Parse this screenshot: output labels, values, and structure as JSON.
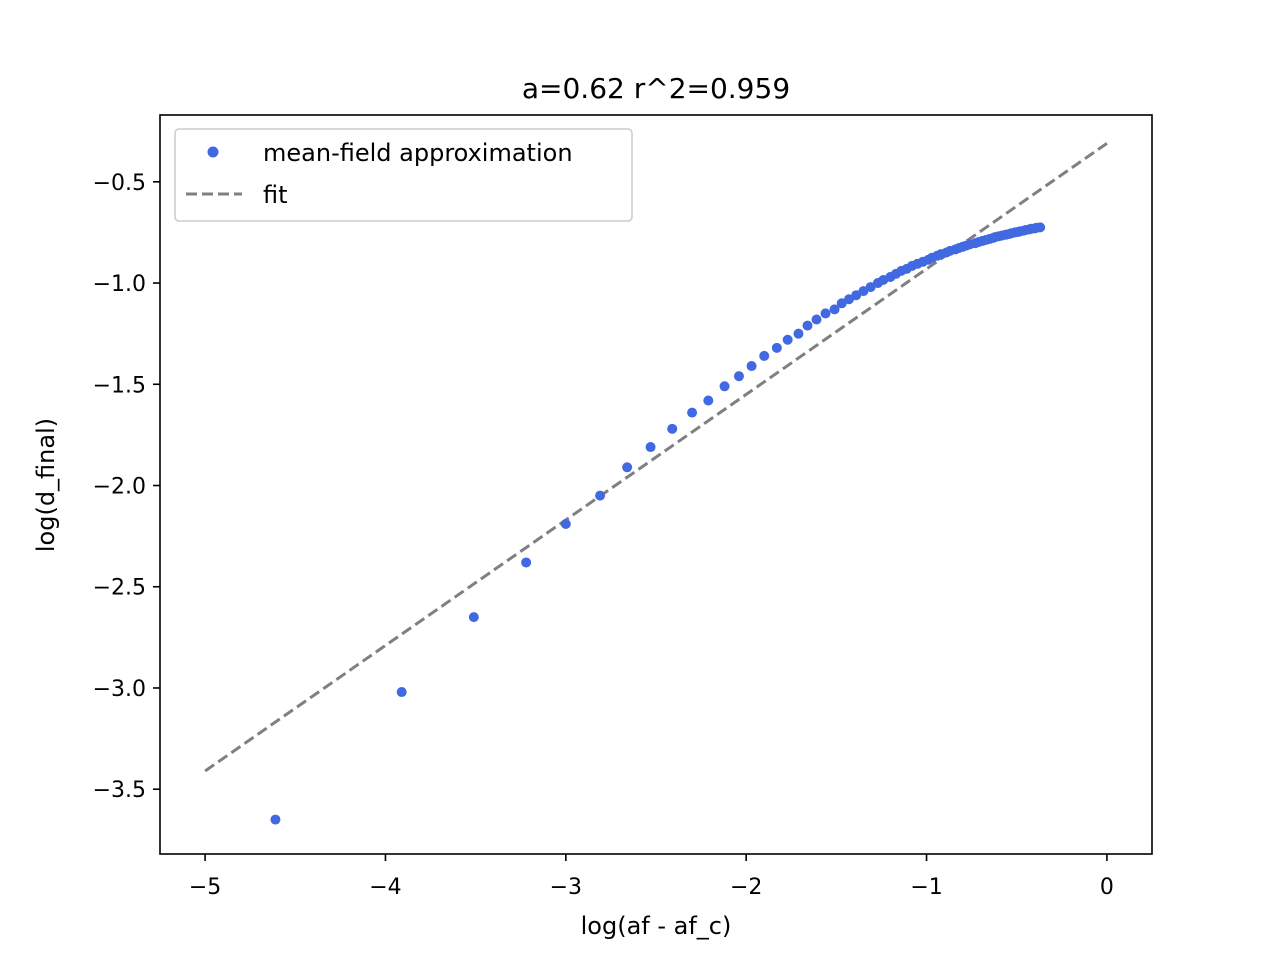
{
  "chart_data": {
    "type": "scatter",
    "title": "a=0.62 r^2=0.959",
    "xlabel": "log(af - af_c)",
    "ylabel": "log(d_final)",
    "xlim": [
      -5.25,
      0.25
    ],
    "ylim": [
      -3.82,
      -0.17
    ],
    "xticks": [
      -5,
      -4,
      -3,
      -2,
      -1,
      0
    ],
    "xtick_labels": [
      "−5",
      "−4",
      "−3",
      "−2",
      "−1",
      "0"
    ],
    "yticks": [
      -3.5,
      -3.0,
      -2.5,
      -2.0,
      -1.5,
      -1.0,
      -0.5
    ],
    "ytick_labels": [
      "−3.5",
      "−3.0",
      "−2.5",
      "−2.0",
      "−1.5",
      "−1.0",
      "−0.5"
    ],
    "grid": false,
    "legend": {
      "position": "top-left",
      "entries": [
        "mean-field approximation",
        "fit"
      ]
    },
    "colors": {
      "points": "#4169e1",
      "fit": "#808080",
      "axes": "#000000"
    },
    "series": [
      {
        "name": "mean-field approximation",
        "kind": "scatter",
        "x": [
          -4.61,
          -3.91,
          -3.51,
          -3.22,
          -3.0,
          -2.81,
          -2.66,
          -2.53,
          -2.41,
          -2.3,
          -2.21,
          -2.12,
          -2.04,
          -1.97,
          -1.9,
          -1.83,
          -1.77,
          -1.71,
          -1.66,
          -1.61,
          -1.56,
          -1.51,
          -1.47,
          -1.43,
          -1.39,
          -1.35,
          -1.31,
          -1.27,
          -1.24,
          -1.2,
          -1.17,
          -1.14,
          -1.11,
          -1.08,
          -1.05,
          -1.02,
          -0.99,
          -0.97,
          -0.94,
          -0.92,
          -0.89,
          -0.87,
          -0.84,
          -0.82,
          -0.8,
          -0.78,
          -0.76,
          -0.73,
          -0.71,
          -0.69,
          -0.67,
          -0.65,
          -0.63,
          -0.62,
          -0.6,
          -0.58,
          -0.56,
          -0.54,
          -0.53,
          -0.51,
          -0.49,
          -0.48,
          -0.46,
          -0.45,
          -0.43,
          -0.42,
          -0.4,
          -0.39,
          -0.37
        ],
        "y": [
          -3.65,
          -3.02,
          -2.65,
          -2.38,
          -2.19,
          -2.05,
          -1.91,
          -1.81,
          -1.72,
          -1.64,
          -1.58,
          -1.51,
          -1.46,
          -1.41,
          -1.36,
          -1.32,
          -1.28,
          -1.25,
          -1.21,
          -1.18,
          -1.15,
          -1.13,
          -1.1,
          -1.08,
          -1.06,
          -1.04,
          -1.02,
          -1.0,
          -0.985,
          -0.97,
          -0.955,
          -0.94,
          -0.93,
          -0.915,
          -0.905,
          -0.895,
          -0.885,
          -0.875,
          -0.865,
          -0.857,
          -0.849,
          -0.841,
          -0.834,
          -0.827,
          -0.821,
          -0.815,
          -0.809,
          -0.803,
          -0.797,
          -0.792,
          -0.787,
          -0.782,
          -0.777,
          -0.773,
          -0.769,
          -0.765,
          -0.761,
          -0.757,
          -0.754,
          -0.75,
          -0.747,
          -0.744,
          -0.741,
          -0.738,
          -0.735,
          -0.732,
          -0.73,
          -0.727,
          -0.725
        ]
      },
      {
        "name": "fit",
        "kind": "line",
        "style": "dashed",
        "x": [
          -5.0,
          0.0
        ],
        "y": [
          -3.41,
          -0.31
        ]
      }
    ]
  }
}
